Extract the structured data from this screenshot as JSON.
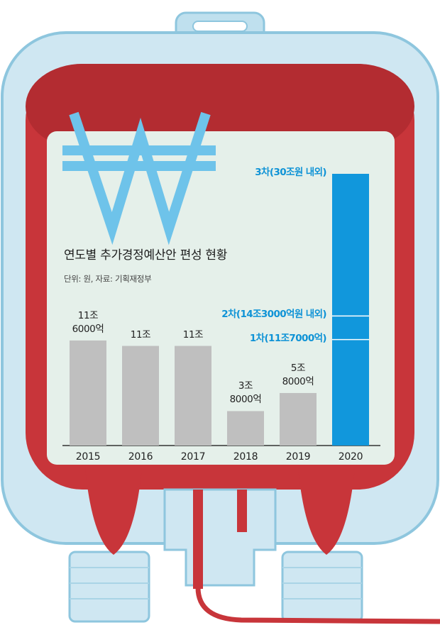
{
  "chart_data": {
    "type": "bar",
    "title": "연도별 추가경정예산안 편성 현황",
    "subtitle": "단위: 원, 자료: 기획재정부",
    "categories": [
      "2015",
      "2016",
      "2017",
      "2018",
      "2019",
      "2020"
    ],
    "values": [
      11.6,
      11,
      11,
      3.8,
      5.8,
      30
    ],
    "unit": "조원",
    "data_labels": [
      [
        "11조",
        "6000억"
      ],
      [
        "11조"
      ],
      [
        "11조"
      ],
      [
        "3조",
        "8000억"
      ],
      [
        "5조",
        "8000억"
      ],
      []
    ],
    "ylim": [
      0,
      32
    ],
    "grid": false,
    "colors": {
      "bar": "#bfbfbf",
      "highlight_bar": "#1197dc",
      "annotation_text": "#0f93d6"
    },
    "annotations": [
      {
        "category": "2020",
        "value": 30,
        "label": "3차(30조원 내외)"
      },
      {
        "category": "2020",
        "value": 14.3,
        "label": "2차(14조3000억원 내외)"
      },
      {
        "category": "2020",
        "value": 11.7,
        "label": "1차(11조7000억)"
      }
    ]
  },
  "decoration": {
    "symbol_icon": "won-sign-icon",
    "frame": "blood-bag-illustration",
    "colors": {
      "bag_outline": "#8ec6de",
      "bag_fill": "#cfe7f2",
      "blood": "#c8353a",
      "blood_dark": "#a8272c",
      "panel": "#e5f0ea",
      "won": "#6ec3ea"
    }
  }
}
